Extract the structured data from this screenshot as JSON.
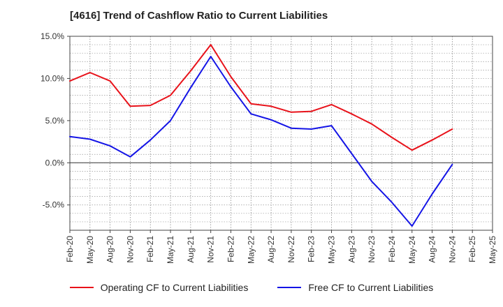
{
  "chart_data": {
    "type": "line",
    "title": "[4616]  Trend of Cashflow Ratio to Current Liabilities",
    "xlabel": "",
    "ylabel": "",
    "categories": [
      "Feb-20",
      "May-20",
      "Aug-20",
      "Nov-20",
      "Feb-21",
      "May-21",
      "Aug-21",
      "Nov-21",
      "Feb-22",
      "May-22",
      "Aug-22",
      "Nov-22",
      "Feb-23",
      "May-23",
      "Aug-23",
      "Nov-23",
      "Feb-24",
      "May-24",
      "Aug-24",
      "Nov-24",
      "Feb-25",
      "May-25"
    ],
    "ylim": [
      -8.0,
      15.0
    ],
    "yticks": [
      15.0,
      10.0,
      5.0,
      0.0,
      -5.0
    ],
    "ytick_labels": [
      "15.0%",
      "10.0%",
      "5.0%",
      "0.0%",
      "-5.0%"
    ],
    "grid": true,
    "legend_position": "bottom",
    "series": [
      {
        "name": "Operating CF to Current Liabilities",
        "color": "#e8121a",
        "values": [
          9.7,
          10.7,
          9.7,
          6.7,
          6.8,
          8.0,
          10.9,
          14.0,
          10.2,
          7.0,
          6.7,
          6.0,
          6.1,
          6.9,
          5.8,
          4.6,
          3.0,
          1.5,
          2.7,
          4.0,
          null,
          null
        ]
      },
      {
        "name": "Free CF to Current Liabilities",
        "color": "#1414e6",
        "values": [
          3.1,
          2.8,
          2.0,
          0.7,
          2.7,
          5.0,
          8.9,
          12.6,
          9.0,
          5.8,
          5.1,
          4.1,
          4.0,
          4.4,
          1.1,
          -2.2,
          -4.7,
          -7.5,
          -3.7,
          -0.2,
          null,
          null
        ]
      }
    ]
  }
}
